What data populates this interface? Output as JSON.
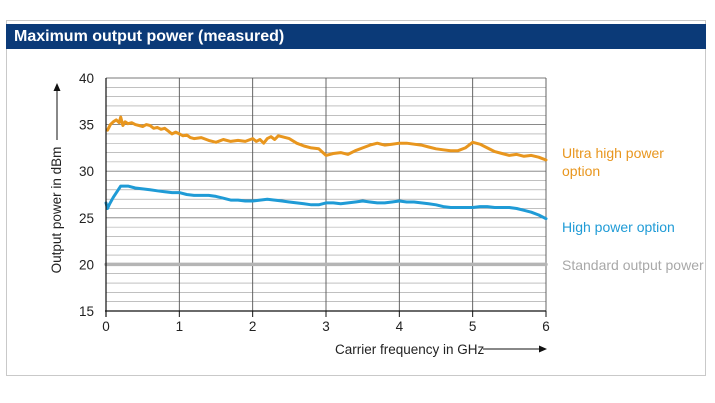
{
  "title": "Maximum output power (measured)",
  "chart_data": {
    "type": "line",
    "title": "Maximum output power (measured)",
    "xlabel": "Carrier frequency in GHz",
    "ylabel": "Output power in dBm",
    "xlim": [
      0,
      6
    ],
    "ylim": [
      15,
      40
    ],
    "x_ticks": [
      "0",
      "1",
      "2",
      "3",
      "4",
      "5",
      "6"
    ],
    "y_ticks": [
      "15",
      "20",
      "25",
      "30",
      "35",
      "40"
    ],
    "grid": true,
    "legend_placement": "right, inline labels",
    "series": [
      {
        "name": "Ultra high power option",
        "color": "#e8961e",
        "x": [
          0.02,
          0.06,
          0.1,
          0.14,
          0.18,
          0.2,
          0.23,
          0.26,
          0.3,
          0.35,
          0.4,
          0.45,
          0.5,
          0.55,
          0.6,
          0.65,
          0.7,
          0.75,
          0.8,
          0.85,
          0.9,
          0.95,
          1.0,
          1.05,
          1.1,
          1.15,
          1.2,
          1.3,
          1.4,
          1.5,
          1.6,
          1.7,
          1.8,
          1.9,
          2.0,
          2.05,
          2.1,
          2.15,
          2.2,
          2.25,
          2.3,
          2.35,
          2.4,
          2.5,
          2.6,
          2.7,
          2.8,
          2.9,
          3.0,
          3.1,
          3.2,
          3.3,
          3.4,
          3.5,
          3.6,
          3.7,
          3.8,
          3.9,
          4.0,
          4.1,
          4.2,
          4.3,
          4.4,
          4.5,
          4.6,
          4.7,
          4.8,
          4.9,
          5.0,
          5.1,
          5.2,
          5.3,
          5.4,
          5.5,
          5.6,
          5.7,
          5.8,
          5.9,
          6.0
        ],
        "values": [
          34.4,
          35.0,
          35.3,
          35.5,
          35.2,
          35.8,
          34.9,
          35.3,
          35.1,
          35.2,
          35.0,
          34.9,
          34.8,
          35.0,
          34.9,
          34.6,
          34.7,
          34.5,
          34.6,
          34.3,
          34.0,
          34.2,
          34.0,
          33.8,
          33.9,
          33.6,
          33.5,
          33.6,
          33.3,
          33.1,
          33.4,
          33.2,
          33.3,
          33.2,
          33.5,
          33.2,
          33.4,
          33.0,
          33.5,
          33.7,
          33.4,
          33.8,
          33.7,
          33.5,
          33.0,
          32.7,
          32.5,
          32.4,
          31.7,
          31.9,
          32.0,
          31.8,
          32.2,
          32.5,
          32.8,
          33.0,
          32.8,
          32.9,
          33.0,
          33.0,
          32.9,
          32.8,
          32.6,
          32.4,
          32.3,
          32.2,
          32.2,
          32.5,
          33.1,
          32.9,
          32.5,
          32.1,
          31.9,
          31.7,
          31.8,
          31.6,
          31.7,
          31.5,
          31.2
        ]
      },
      {
        "name": "High power option",
        "color": "#1f9bd6",
        "x": [
          0.0,
          0.02,
          0.05,
          0.1,
          0.15,
          0.2,
          0.25,
          0.3,
          0.4,
          0.5,
          0.6,
          0.7,
          0.8,
          0.9,
          1.0,
          1.1,
          1.2,
          1.3,
          1.4,
          1.5,
          1.6,
          1.7,
          1.8,
          1.9,
          2.0,
          2.1,
          2.2,
          2.3,
          2.4,
          2.5,
          2.6,
          2.7,
          2.8,
          2.9,
          3.0,
          3.1,
          3.2,
          3.3,
          3.4,
          3.5,
          3.6,
          3.7,
          3.8,
          3.9,
          4.0,
          4.1,
          4.2,
          4.3,
          4.4,
          4.5,
          4.6,
          4.7,
          4.8,
          4.9,
          5.0,
          5.1,
          5.2,
          5.3,
          5.4,
          5.5,
          5.6,
          5.7,
          5.8,
          5.9,
          6.0
        ],
        "values": [
          26.6,
          26.0,
          26.5,
          27.2,
          27.8,
          28.4,
          28.4,
          28.4,
          28.2,
          28.1,
          28.0,
          27.9,
          27.8,
          27.7,
          27.7,
          27.5,
          27.4,
          27.4,
          27.4,
          27.3,
          27.1,
          26.9,
          26.9,
          26.8,
          26.8,
          26.9,
          27.0,
          26.9,
          26.8,
          26.7,
          26.6,
          26.5,
          26.4,
          26.4,
          26.6,
          26.6,
          26.5,
          26.6,
          26.7,
          26.8,
          26.7,
          26.6,
          26.6,
          26.7,
          26.8,
          26.7,
          26.7,
          26.6,
          26.5,
          26.4,
          26.2,
          26.1,
          26.1,
          26.1,
          26.1,
          26.2,
          26.2,
          26.1,
          26.1,
          26.1,
          26.0,
          25.8,
          25.6,
          25.3,
          24.9
        ]
      },
      {
        "name": "Standard output power",
        "color": "#b5b5b5",
        "x": [
          0,
          6
        ],
        "values": [
          20,
          20
        ]
      }
    ]
  }
}
